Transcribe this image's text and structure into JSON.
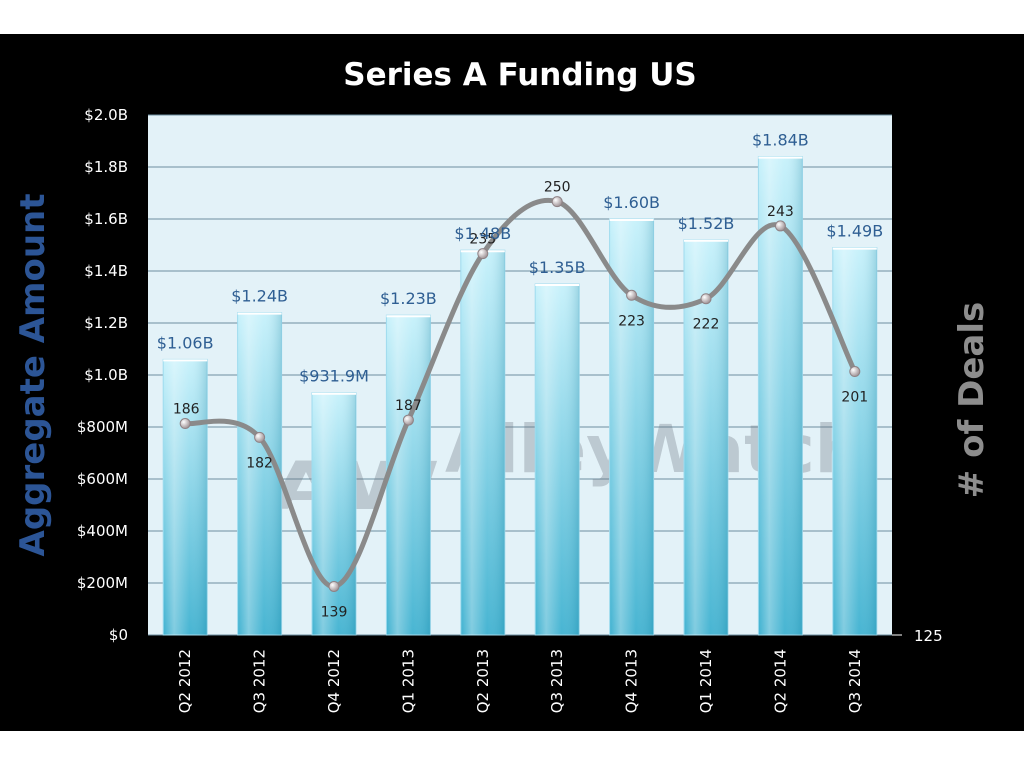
{
  "chart_data": {
    "type": "bar",
    "title": "Series A  Funding US",
    "categories": [
      "Q2 2012",
      "Q3 2012",
      "Q4 2012",
      "Q1 2013",
      "Q2 2013",
      "Q3 2013",
      "Q4 2013",
      "Q1 2014",
      "Q2 2014",
      "Q3 2014"
    ],
    "ylabel": "Aggregate  Amount",
    "y2label": "# of Deals",
    "ylim": [
      0,
      2.0
    ],
    "y2lim": [
      125,
      275
    ],
    "ytick_labels": [
      "$0",
      "$200M",
      "$400M",
      "$600M",
      "$800M",
      "$1.0B",
      "$1.2B",
      "$1.4B",
      "$1.6B",
      "$1.8B",
      "$2.0B"
    ],
    "y2tick_labels": [
      "125"
    ],
    "series": [
      {
        "name": "Aggregate Amount",
        "kind": "bar",
        "unit": "billions USD",
        "values": [
          1.06,
          1.24,
          0.9319,
          1.23,
          1.48,
          1.35,
          1.6,
          1.52,
          1.84,
          1.49
        ],
        "labels": [
          "$1.06B",
          "$1.24B",
          "$931.9M",
          "$1.23B",
          "$1.48B",
          "$1.35B",
          "$1.60B",
          "$1.52B",
          "$1.84B",
          "$1.49B"
        ]
      },
      {
        "name": "# of Deals",
        "kind": "line",
        "axis": "right",
        "values": [
          186,
          182,
          139,
          187,
          235,
          250,
          223,
          222,
          243,
          201
        ],
        "labels": [
          "186",
          "182",
          "139",
          "187",
          "235",
          "250",
          "223",
          "222",
          "243",
          "201"
        ]
      }
    ],
    "watermark": "AlleyWatch",
    "watermark_logo": "AW",
    "grid": true
  },
  "colors": {
    "background": "#000000",
    "plot_background": "#e3f2f8",
    "bar_light": "#bfeefa",
    "bar_dark": "#3fb2d1",
    "line": "#8a8a8a",
    "marker": "#b8b8b8"
  }
}
